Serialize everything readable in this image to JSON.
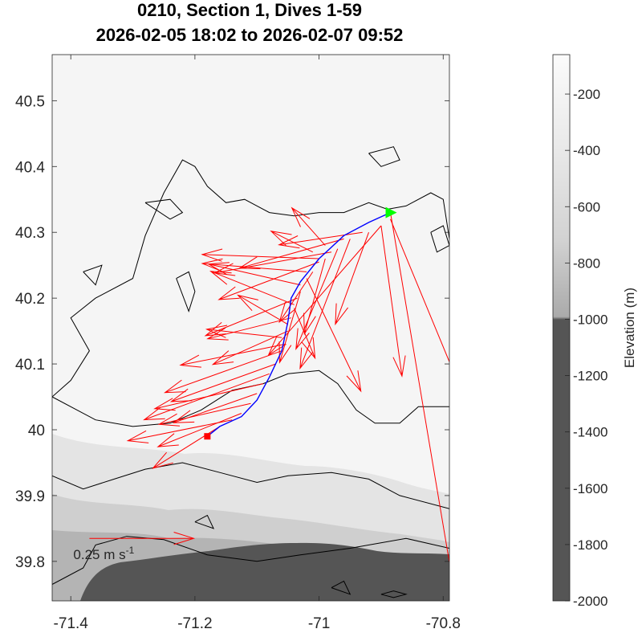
{
  "chart_data": {
    "type": "map",
    "title": "0210, Section 1, Dives 1-59",
    "subtitle": "2026-02-05 18:02 to 2026-02-07 09:52",
    "xlim": [
      -71.43,
      -70.79
    ],
    "ylim": [
      39.74,
      40.57
    ],
    "xticks": [
      "-71.4",
      "-71.2",
      "-71",
      "-70.8"
    ],
    "xtick_values": [
      -71.4,
      -71.2,
      -71.0,
      -70.8
    ],
    "yticks": [
      "39.8",
      "39.9",
      "40",
      "40.1",
      "40.2",
      "40.3",
      "40.4",
      "40.5"
    ],
    "ytick_values": [
      39.8,
      39.9,
      40.0,
      40.1,
      40.2,
      40.3,
      40.4,
      40.5
    ],
    "colorbar": {
      "label": "Elevation (m)",
      "ticks": [
        "-200",
        "-400",
        "-600",
        "-800",
        "-1000",
        "-1200",
        "-1400",
        "-1600",
        "-1800",
        "-2000"
      ],
      "tick_values": [
        -200,
        -400,
        -600,
        -800,
        -1000,
        -1200,
        -1400,
        -1600,
        -1800,
        -2000
      ],
      "range": [
        -2000,
        -60
      ]
    },
    "start_marker": {
      "lon": -70.885,
      "lat": 40.33,
      "color": "#00ff00"
    },
    "end_marker": {
      "lon": -71.18,
      "lat": 39.99,
      "color": "#ff0000"
    },
    "track_color": "#0000ff",
    "track": [
      [
        -70.885,
        40.33
      ],
      [
        -70.92,
        40.315
      ],
      [
        -70.96,
        40.295
      ],
      [
        -71.0,
        40.26
      ],
      [
        -71.03,
        40.225
      ],
      [
        -71.045,
        40.2
      ],
      [
        -71.05,
        40.165
      ],
      [
        -71.06,
        40.12
      ],
      [
        -71.08,
        40.08
      ],
      [
        -71.1,
        40.045
      ],
      [
        -71.125,
        40.02
      ],
      [
        -71.16,
        40.005
      ],
      [
        -71.18,
        39.99
      ]
    ],
    "current_color": "#ff0000",
    "scale_arrow": {
      "label": "0.25 m s",
      "superscript": "-1",
      "speed": 0.25
    },
    "currents": [
      [
        -70.885,
        40.32,
        0.24,
        -0.58
      ],
      [
        -70.9,
        40.31,
        0.05,
        -0.36
      ],
      [
        -70.9,
        40.31,
        -0.27,
        -0.31
      ],
      [
        -70.92,
        40.3,
        -0.08,
        -0.22
      ],
      [
        -70.95,
        40.29,
        -0.12,
        -0.31
      ],
      [
        -70.97,
        40.275,
        -0.1,
        -0.24
      ],
      [
        -70.99,
        40.26,
        -0.05,
        -0.18
      ],
      [
        -71.01,
        40.24,
        -0.08,
        -0.12
      ],
      [
        -71.02,
        40.23,
        0.13,
        -0.27
      ],
      [
        -71.03,
        40.21,
        -0.05,
        -0.17
      ],
      [
        -71.035,
        40.2,
        -0.22,
        -0.09
      ],
      [
        -71.04,
        40.185,
        0.05,
        -0.12
      ],
      [
        -71.045,
        40.17,
        -0.2,
        -0.05
      ],
      [
        -71.05,
        40.15,
        -0.18,
        -0.08
      ],
      [
        -71.055,
        40.13,
        -0.25,
        -0.05
      ],
      [
        -71.06,
        40.12,
        -0.28,
        -0.1
      ],
      [
        -71.07,
        40.1,
        -0.25,
        -0.09
      ],
      [
        -71.08,
        40.085,
        -0.3,
        -0.11
      ],
      [
        -71.09,
        40.07,
        -0.26,
        -0.06
      ],
      [
        -71.1,
        40.055,
        -0.2,
        -0.07
      ],
      [
        -71.11,
        40.04,
        -0.22,
        -0.05
      ],
      [
        -71.125,
        40.025,
        -0.2,
        -0.08
      ],
      [
        -71.14,
        40.015,
        -0.25,
        -0.05
      ],
      [
        -71.16,
        40.005,
        -0.16,
        -0.1
      ],
      [
        -70.93,
        40.3,
        -0.2,
        -0.03
      ],
      [
        -70.96,
        40.29,
        -0.25,
        -0.07
      ],
      [
        -70.98,
        40.27,
        -0.28,
        -0.05
      ],
      [
        -71.0,
        40.255,
        -0.24,
        -0.09
      ],
      [
        -71.02,
        40.24,
        -0.25,
        0.02
      ],
      [
        -71.03,
        40.22,
        -0.22,
        0.05
      ],
      [
        -71.04,
        40.19,
        -0.2,
        0.08
      ],
      [
        -70.99,
        40.28,
        -0.08,
        0.09
      ],
      [
        -71.01,
        40.27,
        -0.1,
        0.05
      ],
      [
        -71.0,
        40.26,
        -0.28,
        0.01
      ],
      [
        -71.05,
        40.16,
        -0.12,
        0.07
      ],
      [
        -71.06,
        40.14,
        -0.18,
        0.02
      ]
    ],
    "contours": [
      [
        [
          -71.43,
          39.765
        ],
        [
          -71.38,
          39.79
        ],
        [
          -71.36,
          39.825
        ],
        [
          -71.31,
          39.838
        ],
        [
          -71.25,
          39.833
        ],
        [
          -71.18,
          39.81
        ],
        [
          -71.1,
          39.8
        ],
        [
          -71.03,
          39.81
        ],
        [
          -70.95,
          39.82
        ],
        [
          -70.86,
          39.835
        ],
        [
          -70.79,
          39.82
        ]
      ],
      [
        [
          -71.43,
          39.93
        ],
        [
          -71.38,
          39.91
        ],
        [
          -71.33,
          39.925
        ],
        [
          -71.28,
          39.94
        ],
        [
          -71.22,
          39.95
        ],
        [
          -71.16,
          39.935
        ],
        [
          -71.1,
          39.92
        ],
        [
          -71.05,
          39.93
        ],
        [
          -70.98,
          39.935
        ],
        [
          -70.92,
          39.925
        ],
        [
          -70.87,
          39.9
        ],
        [
          -70.79,
          39.88
        ]
      ],
      [
        [
          -71.43,
          40.05
        ],
        [
          -71.4,
          40.075
        ],
        [
          -71.37,
          40.12
        ],
        [
          -71.4,
          40.17
        ],
        [
          -71.36,
          40.2
        ],
        [
          -71.3,
          40.23
        ],
        [
          -71.28,
          40.295
        ],
        [
          -71.25,
          40.36
        ],
        [
          -71.22,
          40.41
        ],
        [
          -71.2,
          40.4
        ],
        [
          -71.18,
          40.37
        ],
        [
          -71.15,
          40.345
        ],
        [
          -71.12,
          40.35
        ],
        [
          -71.08,
          40.33
        ],
        [
          -71.04,
          40.325
        ],
        [
          -71.0,
          40.33
        ],
        [
          -70.96,
          40.33
        ],
        [
          -70.92,
          40.345
        ],
        [
          -70.89,
          40.335
        ],
        [
          -70.86,
          40.34
        ],
        [
          -70.82,
          40.36
        ],
        [
          -70.8,
          40.35
        ],
        [
          -70.79,
          40.29
        ]
      ],
      [
        [
          -71.43,
          40.05
        ],
        [
          -71.36,
          40.015
        ],
        [
          -71.3,
          40.005
        ],
        [
          -71.24,
          40.01
        ],
        [
          -71.19,
          40.03
        ],
        [
          -71.14,
          40.06
        ],
        [
          -71.09,
          40.07
        ],
        [
          -71.05,
          40.085
        ],
        [
          -71.0,
          40.09
        ],
        [
          -70.97,
          40.07
        ],
        [
          -70.94,
          40.03
        ],
        [
          -70.91,
          40.01
        ],
        [
          -70.87,
          40.01
        ],
        [
          -70.84,
          40.035
        ],
        [
          -70.79,
          40.035
        ]
      ],
      [
        [
          -71.23,
          40.23
        ],
        [
          -71.21,
          40.18
        ],
        [
          -71.2,
          40.21
        ],
        [
          -71.21,
          40.24
        ],
        [
          -71.23,
          40.23
        ]
      ],
      [
        [
          -71.28,
          40.345
        ],
        [
          -71.24,
          40.35
        ],
        [
          -71.22,
          40.33
        ],
        [
          -71.24,
          40.32
        ],
        [
          -71.28,
          40.345
        ]
      ],
      [
        [
          -70.82,
          40.3
        ],
        [
          -70.81,
          40.27
        ],
        [
          -70.79,
          40.28
        ],
        [
          -70.8,
          40.31
        ],
        [
          -70.82,
          40.3
        ]
      ],
      [
        [
          -70.92,
          40.42
        ],
        [
          -70.88,
          40.43
        ],
        [
          -70.87,
          40.41
        ],
        [
          -70.9,
          40.4
        ],
        [
          -70.92,
          40.42
        ]
      ],
      [
        [
          -71.38,
          40.24
        ],
        [
          -71.35,
          40.25
        ],
        [
          -71.36,
          40.22
        ],
        [
          -71.38,
          40.24
        ]
      ],
      [
        [
          -71.2,
          39.86
        ],
        [
          -71.18,
          39.87
        ],
        [
          -71.17,
          39.85
        ],
        [
          -71.2,
          39.86
        ]
      ],
      [
        [
          -70.98,
          39.76
        ],
        [
          -70.96,
          39.77
        ],
        [
          -70.95,
          39.75
        ],
        [
          -70.98,
          39.76
        ]
      ],
      [
        [
          -70.9,
          39.75
        ],
        [
          -70.88,
          39.755
        ],
        [
          -70.86,
          39.75
        ],
        [
          -70.88,
          39.745
        ],
        [
          -70.9,
          39.75
        ]
      ]
    ]
  }
}
